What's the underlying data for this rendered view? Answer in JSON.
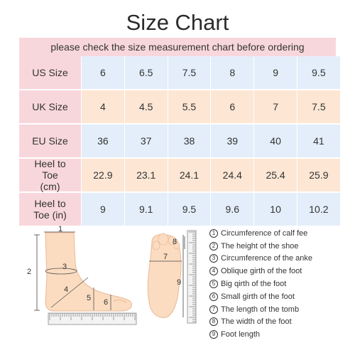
{
  "title": "Size Chart",
  "subtitle": "please check the size measurement chart before ordering",
  "rows": [
    {
      "label": "US Size",
      "values": [
        "6",
        "6.5",
        "7.5",
        "8",
        "9",
        "9.5"
      ]
    },
    {
      "label": "UK Size",
      "values": [
        "4",
        "4.5",
        "5.5",
        "6",
        "7",
        "7.5"
      ]
    },
    {
      "label": "EU Size",
      "values": [
        "36",
        "37",
        "38",
        "39",
        "40",
        "41"
      ]
    },
    {
      "label": "Heel to Toe (cm)",
      "values": [
        "22.9",
        "23.1",
        "24.1",
        "24.4",
        "25.4",
        "25.9"
      ]
    },
    {
      "label": "Heel to Toe (in)",
      "values": [
        "9",
        "9.1",
        "9.5",
        "9.6",
        "10",
        "10.2"
      ]
    }
  ],
  "diagram_labels": [
    "1",
    "2",
    "3",
    "4",
    "5",
    "6",
    "7",
    "8",
    "9"
  ],
  "legend": [
    {
      "num": "1",
      "text": "Circumference of calf fee"
    },
    {
      "num": "2",
      "text": "The height of the shoe"
    },
    {
      "num": "3",
      "text": "Circumference of the anke"
    },
    {
      "num": "4",
      "text": "Oblique girth of the foot"
    },
    {
      "num": "5",
      "text": "Big qirth of the foot"
    },
    {
      "num": "6",
      "text": "Small girth of the foot"
    },
    {
      "num": "7",
      "text": "The length of the tomb"
    },
    {
      "num": "8",
      "text": "The width of the foot"
    },
    {
      "num": "9",
      "text": "Foot length"
    }
  ],
  "colors": {
    "header": "#f8d7dc",
    "blue_row": "#e4eefa",
    "peach_row": "#fde6d4",
    "foot": "#fbdcc0"
  }
}
